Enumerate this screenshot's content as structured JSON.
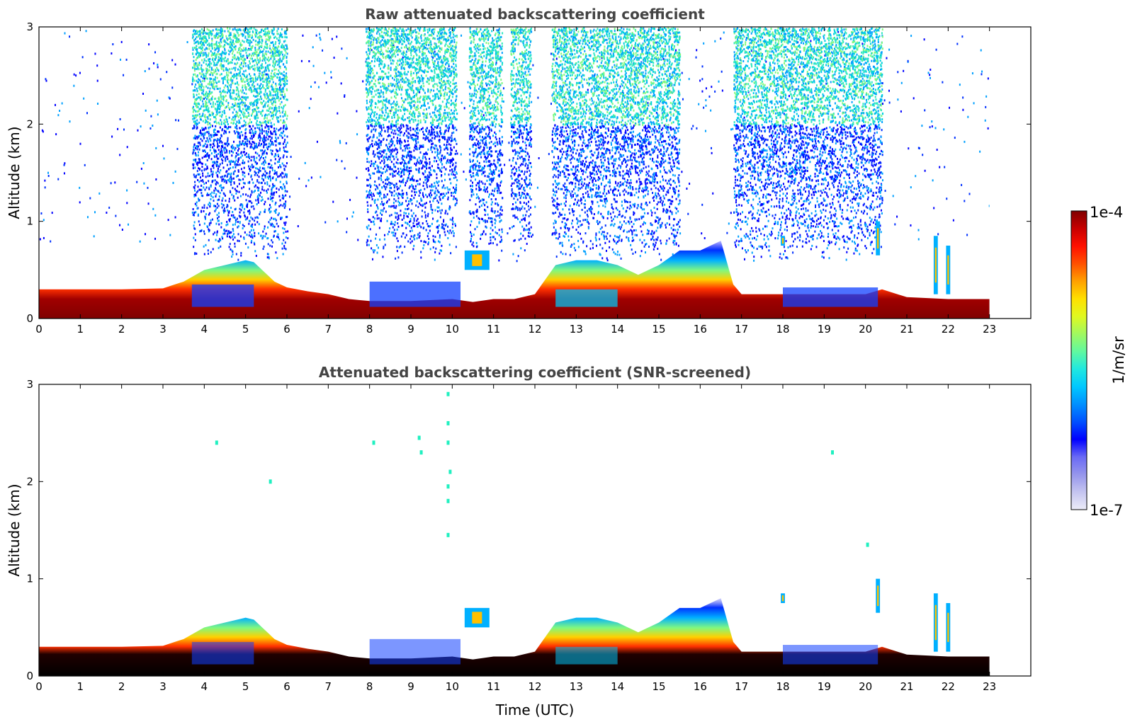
{
  "chart_data": [
    {
      "type": "heatmap",
      "title": "Raw attenuated backscattering coefficient",
      "xlabel": "",
      "ylabel": "Altitude (km)",
      "xlim": [
        0,
        24
      ],
      "ylim": [
        0,
        3
      ],
      "x_ticks": [
        0,
        1,
        2,
        3,
        4,
        5,
        6,
        7,
        8,
        9,
        10,
        11,
        12,
        13,
        14,
        15,
        16,
        17,
        18,
        19,
        20,
        21,
        22,
        23
      ],
      "y_ticks": [
        0,
        1,
        2,
        3
      ],
      "data_end_time": 23,
      "surface_layer_top_km": [
        [
          0,
          0.3
        ],
        [
          1,
          0.3
        ],
        [
          2,
          0.3
        ],
        [
          3,
          0.31
        ],
        [
          3.5,
          0.38
        ],
        [
          4,
          0.5
        ],
        [
          4.5,
          0.55
        ],
        [
          5,
          0.6
        ],
        [
          5.2,
          0.58
        ],
        [
          5.4,
          0.5
        ],
        [
          5.7,
          0.38
        ],
        [
          6,
          0.32
        ],
        [
          6.5,
          0.28
        ],
        [
          7,
          0.25
        ],
        [
          7.5,
          0.2
        ],
        [
          8,
          0.18
        ],
        [
          9,
          0.18
        ],
        [
          10,
          0.2
        ],
        [
          10.5,
          0.17
        ],
        [
          11,
          0.2
        ],
        [
          11.5,
          0.2
        ],
        [
          12,
          0.25
        ],
        [
          12.5,
          0.55
        ],
        [
          13,
          0.6
        ],
        [
          13.5,
          0.6
        ],
        [
          14,
          0.55
        ],
        [
          14.5,
          0.45
        ],
        [
          15,
          0.55
        ],
        [
          15.5,
          0.7
        ],
        [
          16,
          0.7
        ],
        [
          16.5,
          0.8
        ],
        [
          16.8,
          0.35
        ],
        [
          17,
          0.25
        ],
        [
          18,
          0.25
        ],
        [
          19,
          0.25
        ],
        [
          20,
          0.25
        ],
        [
          20.4,
          0.3
        ],
        [
          21,
          0.22
        ],
        [
          22,
          0.2
        ],
        [
          23,
          0.2
        ]
      ],
      "elevated_layers": [
        {
          "t": [
            10.3,
            10.9
          ],
          "alt": [
            0.5,
            0.7
          ]
        },
        {
          "t": [
            17.95,
            18.05
          ],
          "alt": [
            0.75,
            0.85
          ]
        },
        {
          "t": [
            20.25,
            20.35
          ],
          "alt": [
            0.65,
            1.0
          ]
        },
        {
          "t": [
            21.65,
            21.75
          ],
          "alt": [
            0.25,
            0.85
          ]
        },
        {
          "t": [
            21.95,
            22.05
          ],
          "alt": [
            0.25,
            0.75
          ]
        }
      ],
      "noise_columns_hours": [
        [
          3.7,
          5.3
        ],
        [
          5.3,
          6.0
        ],
        [
          7.9,
          10.1
        ],
        [
          10.4,
          11.2
        ],
        [
          11.4,
          11.9
        ],
        [
          12.4,
          14.0
        ],
        [
          14.0,
          15.5
        ],
        [
          16.8,
          20.4
        ]
      ]
    },
    {
      "type": "heatmap",
      "title": "Attenuated backscattering coefficient (SNR-screened)",
      "xlabel": "Time (UTC)",
      "ylabel": "Altitude (km)",
      "xlim": [
        0,
        24
      ],
      "ylim": [
        0,
        3
      ],
      "x_ticks": [
        0,
        1,
        2,
        3,
        4,
        5,
        6,
        7,
        8,
        9,
        10,
        11,
        12,
        13,
        14,
        15,
        16,
        17,
        18,
        19,
        20,
        21,
        22,
        23
      ],
      "y_ticks": [
        0,
        1,
        2,
        3
      ],
      "data_end_time": 23,
      "saturated_color": "#000000",
      "retained_noise_points": [
        [
          9.9,
          2.9
        ],
        [
          9.9,
          2.6
        ],
        [
          9.9,
          2.4
        ],
        [
          9.95,
          2.1
        ],
        [
          9.9,
          1.95
        ],
        [
          9.9,
          1.8
        ],
        [
          9.9,
          1.45
        ],
        [
          9.2,
          2.45
        ],
        [
          9.25,
          2.3
        ],
        [
          8.1,
          2.4
        ],
        [
          4.3,
          2.4
        ],
        [
          5.6,
          2.0
        ],
        [
          19.2,
          2.3
        ],
        [
          20.05,
          1.35
        ]
      ]
    }
  ],
  "colorbar": {
    "label": "1/m/sr",
    "max_label": "1e-4",
    "min_label": "1e-7",
    "scale": "log",
    "range": [
      1e-07,
      0.0001
    ],
    "colormap": [
      "#ececf8",
      "#c4c4f0",
      "#9595ec",
      "#6a6af5",
      "#0000ff",
      "#0050ff",
      "#0090ff",
      "#00c8ff",
      "#20e8e0",
      "#60f8a0",
      "#a0f860",
      "#e0f820",
      "#ffe000",
      "#ffa000",
      "#ff5000",
      "#ff1000",
      "#c80000",
      "#800000"
    ]
  },
  "background_color": "#ffffff"
}
